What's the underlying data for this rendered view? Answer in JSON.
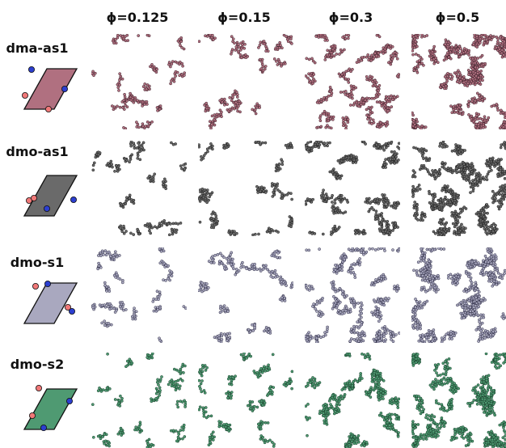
{
  "columns": [
    {
      "label": "ϕ=0.125",
      "density": 0.125
    },
    {
      "label": "ϕ=0.15",
      "density": 0.15
    },
    {
      "label": "ϕ=0.3",
      "density": 0.3
    },
    {
      "label": "ϕ=0.5",
      "density": 0.5
    }
  ],
  "rows": [
    {
      "label": "dma-as1",
      "color": "#b07080",
      "edge": "#3a1f28"
    },
    {
      "label": "dmo-as1",
      "color": "#6a6a6a",
      "edge": "#1c1c1c"
    },
    {
      "label": "dmo-s1",
      "color": "#a9a8bf",
      "edge": "#2e2d45"
    },
    {
      "label": "dmo-s2",
      "color": "#4f9a72",
      "edge": "#163d29"
    }
  ],
  "patch_colors": {
    "red": "#f07878",
    "blue": "#2c3fd0"
  }
}
